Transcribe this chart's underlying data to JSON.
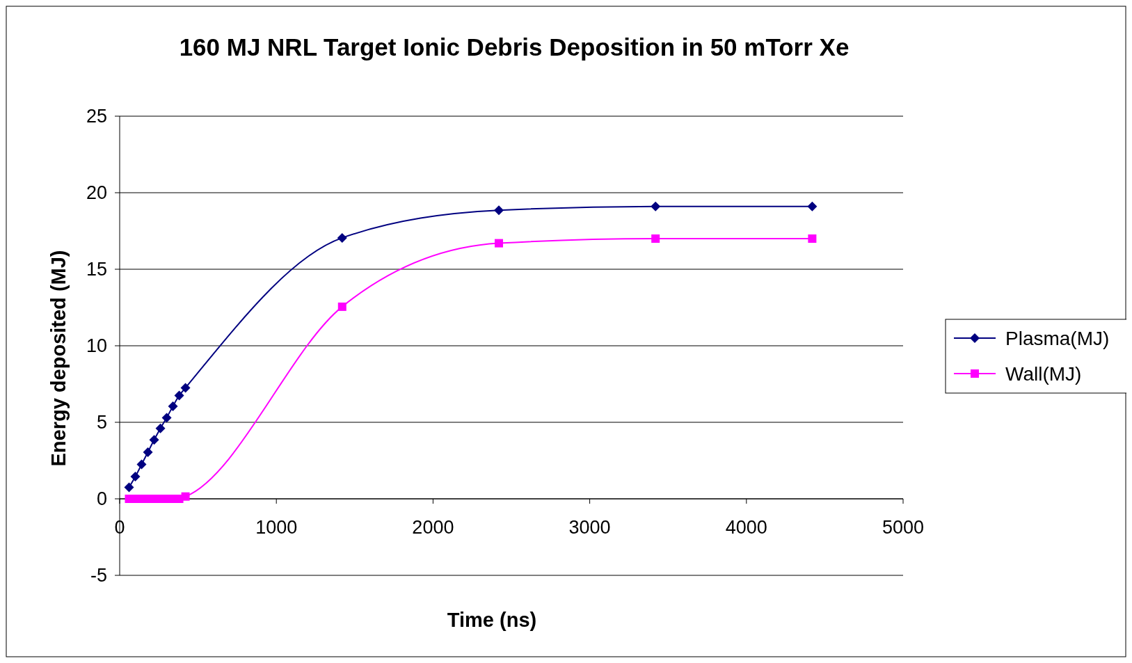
{
  "chart_data": {
    "type": "line",
    "title": "160 MJ NRL Target Ionic Debris Deposition in 50 mTorr Xe",
    "xlabel": "Time (ns)",
    "ylabel": "Energy deposited (MJ)",
    "x": [
      60,
      100,
      140,
      180,
      220,
      260,
      300,
      340,
      380,
      420,
      1420,
      2420,
      3420,
      4420
    ],
    "series": [
      {
        "name": "Plasma(MJ)",
        "color": "#000080",
        "marker": "diamond",
        "values": [
          0.75,
          1.45,
          2.25,
          3.05,
          3.85,
          4.6,
          5.3,
          6.05,
          6.75,
          7.25,
          17.05,
          18.85,
          19.1,
          19.1
        ]
      },
      {
        "name": "Wall(MJ)",
        "color": "#ff00ff",
        "marker": "square",
        "values": [
          0,
          0,
          0,
          0,
          0,
          0,
          0,
          0,
          0,
          0.15,
          12.55,
          16.7,
          17,
          17
        ]
      }
    ],
    "xlim": [
      0,
      5000
    ],
    "xticks": [
      0,
      1000,
      2000,
      3000,
      4000,
      5000
    ],
    "ylim": [
      -5,
      25
    ],
    "yticks": [
      -5,
      0,
      5,
      10,
      15,
      20,
      25
    ],
    "grid": "y",
    "legend": "right",
    "line_style": "solid"
  }
}
